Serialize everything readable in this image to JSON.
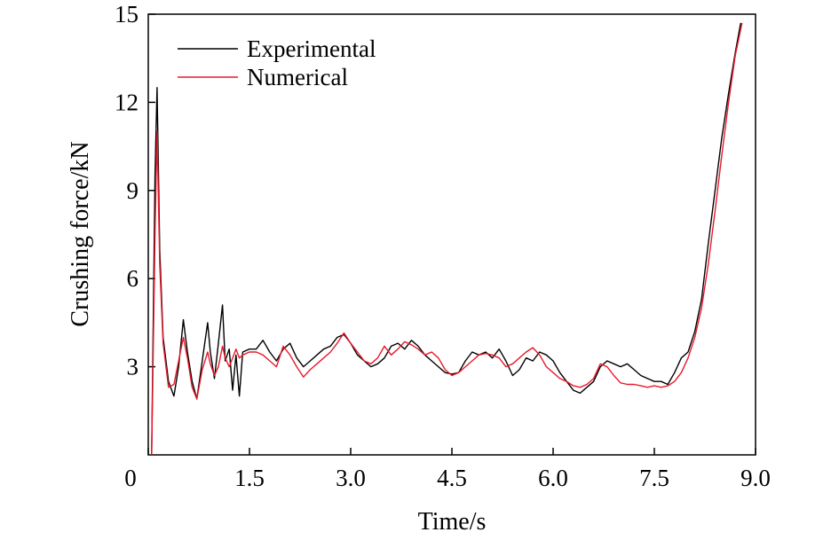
{
  "chart_data": {
    "type": "line",
    "xlabel": "Time/s",
    "ylabel": "Crushing force/kN",
    "xlim": [
      0,
      9.0
    ],
    "ylim": [
      0,
      15
    ],
    "x_ticks": [
      "0",
      "1.5",
      "3.0",
      "4.5",
      "6.0",
      "7.5",
      "9.0"
    ],
    "y_ticks": [
      "3",
      "6",
      "9",
      "12",
      "15"
    ],
    "grid": false,
    "legend_position": "top-left",
    "series": [
      {
        "name": "Experimental",
        "color": "#000000",
        "points": [
          [
            0.05,
            0.0
          ],
          [
            0.1,
            9.5
          ],
          [
            0.13,
            12.5
          ],
          [
            0.17,
            7.0
          ],
          [
            0.22,
            4.0
          ],
          [
            0.3,
            2.5
          ],
          [
            0.38,
            2.0
          ],
          [
            0.45,
            3.0
          ],
          [
            0.52,
            4.6
          ],
          [
            0.58,
            3.5
          ],
          [
            0.65,
            2.5
          ],
          [
            0.72,
            1.9
          ],
          [
            0.8,
            3.2
          ],
          [
            0.88,
            4.5
          ],
          [
            0.92,
            3.5
          ],
          [
            0.98,
            2.6
          ],
          [
            1.04,
            3.8
          ],
          [
            1.1,
            5.1
          ],
          [
            1.14,
            3.2
          ],
          [
            1.2,
            3.6
          ],
          [
            1.25,
            2.2
          ],
          [
            1.3,
            3.4
          ],
          [
            1.35,
            2.0
          ],
          [
            1.4,
            3.5
          ],
          [
            1.5,
            3.6
          ],
          [
            1.6,
            3.6
          ],
          [
            1.7,
            3.9
          ],
          [
            1.8,
            3.5
          ],
          [
            1.9,
            3.2
          ],
          [
            2.0,
            3.6
          ],
          [
            2.1,
            3.8
          ],
          [
            2.2,
            3.3
          ],
          [
            2.3,
            3.0
          ],
          [
            2.4,
            3.2
          ],
          [
            2.5,
            3.4
          ],
          [
            2.6,
            3.6
          ],
          [
            2.7,
            3.7
          ],
          [
            2.8,
            4.0
          ],
          [
            2.9,
            4.1
          ],
          [
            3.0,
            3.8
          ],
          [
            3.1,
            3.4
          ],
          [
            3.2,
            3.2
          ],
          [
            3.3,
            3.0
          ],
          [
            3.4,
            3.1
          ],
          [
            3.5,
            3.3
          ],
          [
            3.6,
            3.7
          ],
          [
            3.7,
            3.8
          ],
          [
            3.8,
            3.6
          ],
          [
            3.9,
            3.9
          ],
          [
            4.0,
            3.7
          ],
          [
            4.1,
            3.4
          ],
          [
            4.2,
            3.2
          ],
          [
            4.3,
            3.0
          ],
          [
            4.4,
            2.8
          ],
          [
            4.5,
            2.75
          ],
          [
            4.6,
            2.8
          ],
          [
            4.7,
            3.2
          ],
          [
            4.8,
            3.5
          ],
          [
            4.9,
            3.4
          ],
          [
            5.0,
            3.5
          ],
          [
            5.1,
            3.3
          ],
          [
            5.2,
            3.6
          ],
          [
            5.3,
            3.2
          ],
          [
            5.4,
            2.7
          ],
          [
            5.5,
            2.9
          ],
          [
            5.6,
            3.3
          ],
          [
            5.7,
            3.2
          ],
          [
            5.8,
            3.5
          ],
          [
            5.9,
            3.4
          ],
          [
            6.0,
            3.2
          ],
          [
            6.1,
            2.8
          ],
          [
            6.2,
            2.5
          ],
          [
            6.3,
            2.2
          ],
          [
            6.4,
            2.1
          ],
          [
            6.5,
            2.3
          ],
          [
            6.6,
            2.5
          ],
          [
            6.7,
            3.0
          ],
          [
            6.8,
            3.2
          ],
          [
            6.9,
            3.1
          ],
          [
            7.0,
            3.0
          ],
          [
            7.1,
            3.1
          ],
          [
            7.2,
            2.9
          ],
          [
            7.3,
            2.7
          ],
          [
            7.4,
            2.6
          ],
          [
            7.5,
            2.5
          ],
          [
            7.6,
            2.5
          ],
          [
            7.7,
            2.4
          ],
          [
            7.8,
            2.8
          ],
          [
            7.9,
            3.3
          ],
          [
            8.0,
            3.5
          ],
          [
            8.1,
            4.2
          ],
          [
            8.2,
            5.3
          ],
          [
            8.3,
            7.2
          ],
          [
            8.4,
            9.0
          ],
          [
            8.5,
            10.8
          ],
          [
            8.6,
            12.3
          ],
          [
            8.7,
            13.7
          ],
          [
            8.78,
            14.7
          ]
        ]
      },
      {
        "name": "Numerical",
        "color": "#e8192c",
        "points": [
          [
            0.05,
            0.0
          ],
          [
            0.1,
            7.5
          ],
          [
            0.13,
            11.0
          ],
          [
            0.17,
            6.5
          ],
          [
            0.22,
            3.8
          ],
          [
            0.3,
            2.3
          ],
          [
            0.38,
            2.4
          ],
          [
            0.45,
            3.2
          ],
          [
            0.52,
            4.0
          ],
          [
            0.58,
            3.3
          ],
          [
            0.65,
            2.3
          ],
          [
            0.72,
            1.9
          ],
          [
            0.8,
            2.9
          ],
          [
            0.88,
            3.5
          ],
          [
            0.92,
            3.1
          ],
          [
            0.98,
            2.7
          ],
          [
            1.04,
            3.0
          ],
          [
            1.1,
            3.7
          ],
          [
            1.14,
            3.3
          ],
          [
            1.2,
            3.0
          ],
          [
            1.25,
            3.3
          ],
          [
            1.3,
            3.6
          ],
          [
            1.35,
            3.3
          ],
          [
            1.4,
            3.4
          ],
          [
            1.5,
            3.5
          ],
          [
            1.6,
            3.5
          ],
          [
            1.7,
            3.4
          ],
          [
            1.8,
            3.2
          ],
          [
            1.9,
            3.0
          ],
          [
            2.0,
            3.7
          ],
          [
            2.1,
            3.4
          ],
          [
            2.2,
            3.0
          ],
          [
            2.3,
            2.65
          ],
          [
            2.4,
            2.9
          ],
          [
            2.5,
            3.1
          ],
          [
            2.6,
            3.3
          ],
          [
            2.7,
            3.5
          ],
          [
            2.8,
            3.8
          ],
          [
            2.9,
            4.15
          ],
          [
            3.0,
            3.8
          ],
          [
            3.1,
            3.5
          ],
          [
            3.2,
            3.2
          ],
          [
            3.3,
            3.1
          ],
          [
            3.4,
            3.3
          ],
          [
            3.5,
            3.7
          ],
          [
            3.6,
            3.4
          ],
          [
            3.7,
            3.6
          ],
          [
            3.8,
            3.85
          ],
          [
            3.9,
            3.75
          ],
          [
            4.0,
            3.6
          ],
          [
            4.1,
            3.4
          ],
          [
            4.2,
            3.5
          ],
          [
            4.3,
            3.3
          ],
          [
            4.4,
            2.9
          ],
          [
            4.5,
            2.7
          ],
          [
            4.6,
            2.8
          ],
          [
            4.7,
            3.0
          ],
          [
            4.8,
            3.2
          ],
          [
            4.9,
            3.4
          ],
          [
            5.0,
            3.45
          ],
          [
            5.1,
            3.4
          ],
          [
            5.2,
            3.3
          ],
          [
            5.3,
            3.0
          ],
          [
            5.4,
            3.1
          ],
          [
            5.5,
            3.3
          ],
          [
            5.6,
            3.5
          ],
          [
            5.7,
            3.65
          ],
          [
            5.8,
            3.4
          ],
          [
            5.9,
            3.0
          ],
          [
            6.0,
            2.8
          ],
          [
            6.1,
            2.6
          ],
          [
            6.2,
            2.5
          ],
          [
            6.3,
            2.35
          ],
          [
            6.4,
            2.3
          ],
          [
            6.5,
            2.4
          ],
          [
            6.6,
            2.6
          ],
          [
            6.7,
            3.1
          ],
          [
            6.8,
            3.0
          ],
          [
            6.9,
            2.7
          ],
          [
            7.0,
            2.45
          ],
          [
            7.1,
            2.4
          ],
          [
            7.2,
            2.4
          ],
          [
            7.3,
            2.35
          ],
          [
            7.4,
            2.3
          ],
          [
            7.5,
            2.35
          ],
          [
            7.6,
            2.3
          ],
          [
            7.7,
            2.35
          ],
          [
            7.8,
            2.5
          ],
          [
            7.9,
            2.8
          ],
          [
            8.0,
            3.3
          ],
          [
            8.1,
            4.0
          ],
          [
            8.2,
            5.0
          ],
          [
            8.3,
            6.5
          ],
          [
            8.4,
            8.3
          ],
          [
            8.5,
            10.2
          ],
          [
            8.6,
            12.0
          ],
          [
            8.7,
            13.6
          ],
          [
            8.8,
            14.7
          ]
        ]
      }
    ]
  }
}
